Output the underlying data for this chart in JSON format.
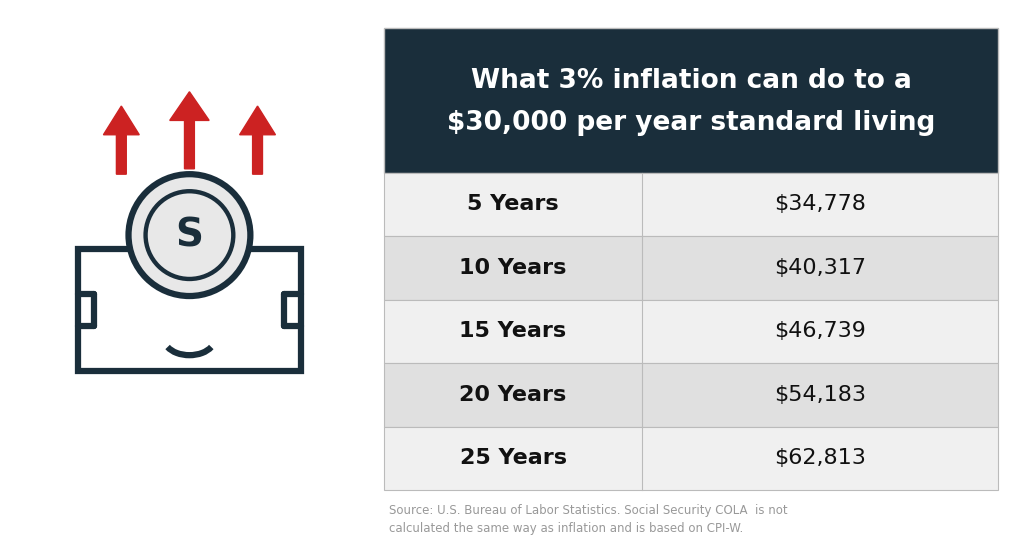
{
  "title_line1": "What 3% inflation can do to a",
  "title_line2": "$30,000 per year standard living",
  "header_bg": "#1a2e3b",
  "header_text_color": "#ffffff",
  "row_bg_odd": "#f0f0f0",
  "row_bg_even": "#e0e0e0",
  "cell_text_color": "#111111",
  "border_color": "#bbbbbb",
  "rows": [
    [
      "5 Years",
      "$34,778"
    ],
    [
      "10 Years",
      "$40,317"
    ],
    [
      "15 Years",
      "$46,739"
    ],
    [
      "20 Years",
      "$54,183"
    ],
    [
      "25 Years",
      "$62,813"
    ]
  ],
  "source_text": "Source: U.S. Bureau of Labor Statistics. Social Security COLA  is not\ncalculated the same way as inflation and is based on CPI-W.",
  "source_color": "#999999",
  "arrow_color": "#cc2222",
  "icon_color": "#1a2e3b",
  "background_color": "#ffffff"
}
